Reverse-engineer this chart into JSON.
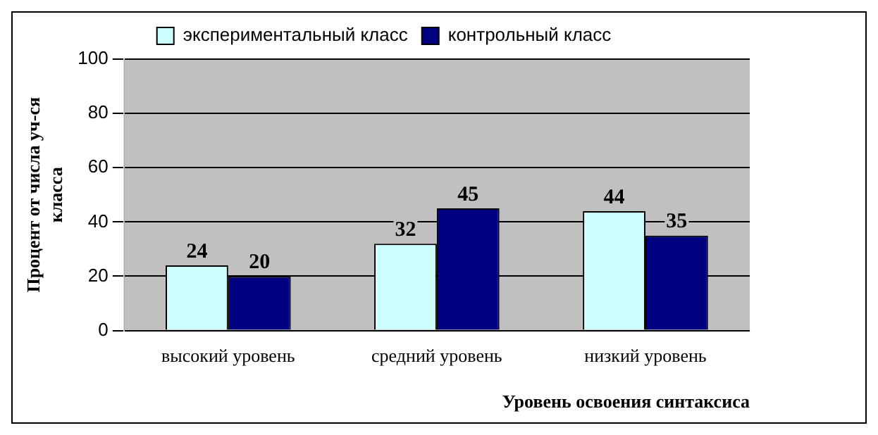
{
  "chart_data": {
    "type": "bar",
    "xlabel": "Уровень освоения синтаксиса",
    "ylabel": "Процент от числа уч-ся класса",
    "categories": [
      "высокий уровень",
      "средний уровень",
      "низкий уровень"
    ],
    "series": [
      {
        "name": "экспериментальный класс",
        "color": "#ccffff",
        "values": [
          24,
          32,
          44
        ]
      },
      {
        "name": "контрольный класс",
        "color": "#000080",
        "values": [
          20,
          45,
          35
        ]
      }
    ],
    "ylim": [
      0,
      100
    ],
    "yticks": [
      0,
      20,
      40,
      60,
      80,
      100
    ],
    "grid": "y",
    "legend": "top",
    "data_labels": true
  }
}
